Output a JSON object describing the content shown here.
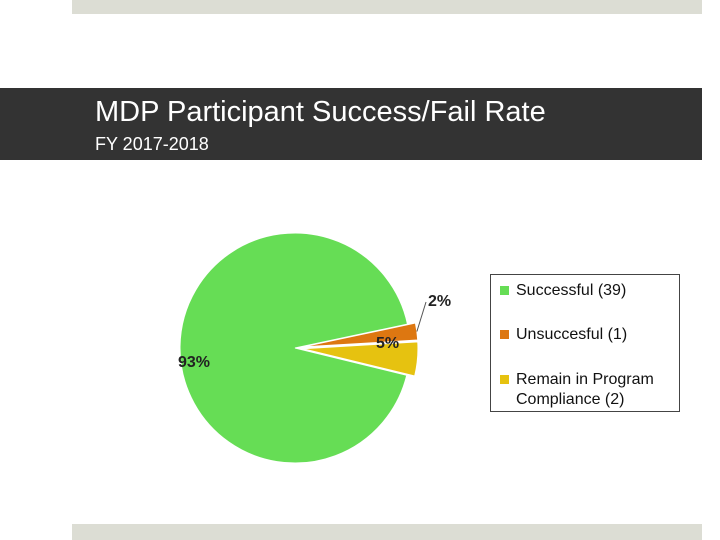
{
  "header": {
    "title": "MDP Participant Success/Fail Rate",
    "subtitle": "FY 2017-2018"
  },
  "chart_data": {
    "type": "pie",
    "title": "MDP Participant Success/Fail Rate",
    "subtitle": "FY 2017-2018",
    "categories": [
      "Successful (39)",
      "Unsuccesful (1)",
      "Remain in Program Compliance (2)"
    ],
    "values": [
      39,
      1,
      2
    ],
    "data_labels": [
      "93%",
      "2%",
      "5%"
    ],
    "colors": [
      "#66dd55",
      "#dd7711",
      "#e6c210"
    ],
    "legend_position": "right"
  }
}
